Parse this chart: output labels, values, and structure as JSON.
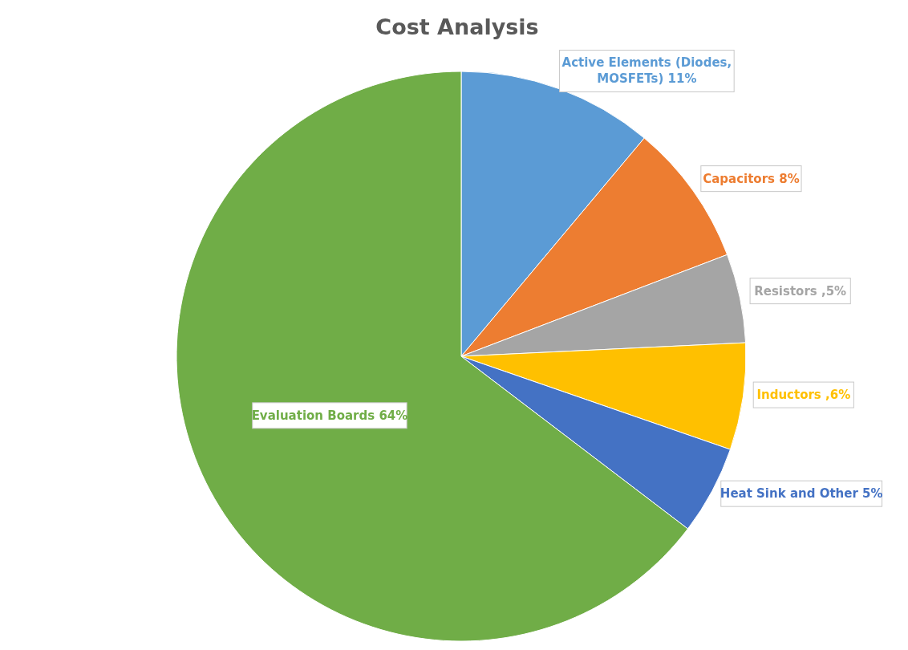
{
  "chart_data": {
    "type": "pie",
    "title": "Cost Analysis",
    "categories": [
      "Active Elements (Diodes, MOSFETs)",
      "Capacitors",
      "Resistors",
      "Inductors",
      "Heat Sink and Other",
      "Evaluation Boards"
    ],
    "values": [
      11,
      8,
      5,
      6,
      5,
      64
    ],
    "value_labels": [
      "11%",
      "8%",
      ",5%",
      ",6%",
      "5%",
      "64%"
    ],
    "colors": [
      "#5b9bd5",
      "#ed7d31",
      "#a5a5a5",
      "#ffc000",
      "#4472c4",
      "#70ad47"
    ],
    "legend": false
  }
}
